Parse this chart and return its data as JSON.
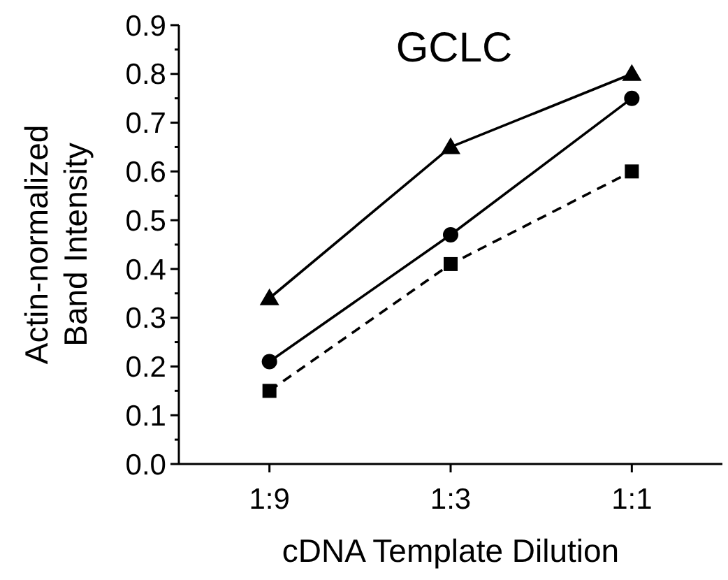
{
  "chart_data": {
    "type": "line",
    "title": "GCLC",
    "xlabel": "cDNA Template Dilution",
    "ylabel": "Actin-normalized\nBand Intensity",
    "categories": [
      "1:9",
      "1:3",
      "1:1"
    ],
    "series": [
      {
        "color": "#000000",
        "marker": "triangle",
        "line_style": "solid",
        "values": [
          0.34,
          0.65,
          0.8
        ]
      },
      {
        "color": "#000000",
        "marker": "circle",
        "line_style": "solid",
        "values": [
          0.21,
          0.47,
          0.75
        ]
      },
      {
        "color": "#000000",
        "marker": "square",
        "line_style": "dashed",
        "values": [
          0.15,
          0.41,
          0.6
        ]
      }
    ],
    "ylim": [
      0,
      0.9
    ],
    "yticks": [
      "0.0",
      {
        "value": 0.05,
        "label": null
      },
      0.1,
      {
        "value": 0.15,
        "label": null
      },
      0.2,
      {
        "value": 0.25,
        "label": null
      },
      0.3,
      {
        "value": 0.35,
        "label": null
      },
      0.4,
      {
        "value": 0.45,
        "label": null
      },
      0.5,
      {
        "value": 0.55,
        "label": null
      },
      0.6,
      {
        "value": 0.65,
        "label": null
      },
      0.7,
      {
        "value": 0.75,
        "label": null
      },
      0.8,
      {
        "value": 0.85,
        "label": null
      },
      0.9
    ],
    "grid": false
  }
}
